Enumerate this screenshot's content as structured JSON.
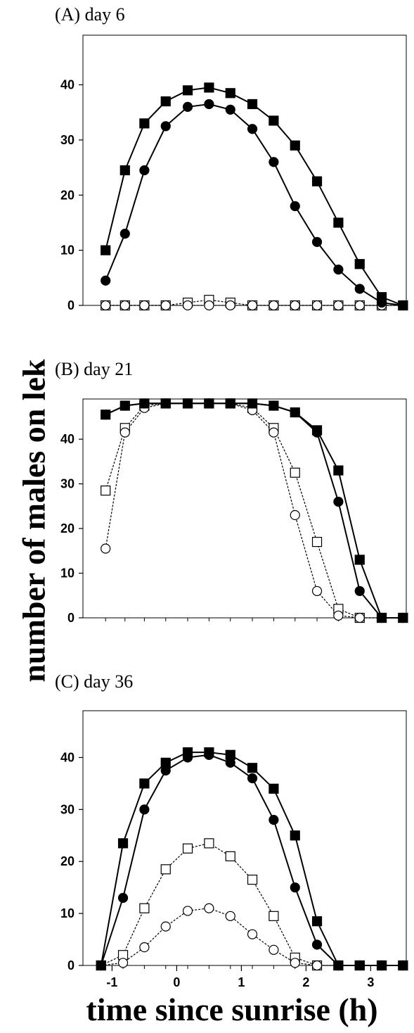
{
  "ylabel": "number of males on lek",
  "xlabel": "time since sunrise (h)",
  "chart_data": [
    {
      "type": "line",
      "title": "(A) day 6",
      "ylim": [
        0,
        49
      ],
      "yticks": [
        0,
        10,
        20,
        30,
        40
      ],
      "x": [
        -1.1,
        -0.8,
        -0.5,
        -0.17,
        0.17,
        0.5,
        0.83,
        1.17,
        1.5,
        1.83,
        2.17,
        2.5,
        2.83,
        3.17,
        3.5
      ],
      "series": [
        {
          "marker": "square-filled",
          "line": "solid",
          "values": [
            10,
            24.5,
            33,
            37,
            39,
            39.5,
            38.5,
            36.5,
            33.5,
            29,
            22.5,
            15,
            7.5,
            1.5,
            0
          ]
        },
        {
          "marker": "circle-filled",
          "line": "solid",
          "values": [
            4.5,
            13,
            24.5,
            32.5,
            36,
            36.5,
            35.5,
            32,
            26,
            18,
            11.5,
            6.5,
            3,
            0.5,
            0
          ]
        },
        {
          "marker": "square-open",
          "line": "dotted",
          "values": [
            0,
            0,
            0,
            0,
            0.5,
            1,
            0.5,
            0,
            0,
            0,
            0,
            0,
            0,
            0,
            0
          ]
        },
        {
          "marker": "circle-open",
          "line": "dotted",
          "values": [
            0,
            0,
            0,
            0,
            0,
            0,
            0,
            0,
            0,
            0,
            0,
            0,
            0,
            0,
            0
          ]
        }
      ]
    },
    {
      "type": "line",
      "title": "(B) day 21",
      "ylim": [
        0,
        49
      ],
      "yticks": [
        0,
        10,
        20,
        30,
        40
      ],
      "x": [
        -1.1,
        -0.8,
        -0.5,
        -0.17,
        0.17,
        0.5,
        0.83,
        1.17,
        1.5,
        1.83,
        2.17,
        2.5,
        2.83,
        3.17,
        3.5
      ],
      "series": [
        {
          "marker": "square-filled",
          "line": "solid",
          "values": [
            45.5,
            47.5,
            48,
            48,
            48,
            48,
            48,
            48,
            47.5,
            46,
            42,
            33,
            13,
            0,
            0
          ]
        },
        {
          "marker": "circle-filled",
          "line": "solid",
          "values": [
            45.5,
            47.5,
            48,
            48,
            48,
            48,
            48,
            48,
            47.5,
            46,
            41.5,
            26,
            6,
            0,
            0
          ]
        },
        {
          "marker": "square-open",
          "line": "dotted",
          "values": [
            28.5,
            42.5,
            47.5,
            48,
            48,
            48,
            48,
            47,
            42.5,
            32.5,
            17,
            2,
            0,
            0,
            0
          ]
        },
        {
          "marker": "circle-open",
          "line": "dotted",
          "values": [
            15.5,
            41.5,
            47,
            48,
            48,
            48,
            48,
            46.5,
            41.5,
            23,
            6,
            0.5,
            0,
            0,
            0
          ]
        }
      ]
    },
    {
      "type": "line",
      "title": "(C) day 36",
      "ylim": [
        0,
        49
      ],
      "yticks": [
        0,
        10,
        20,
        30,
        40
      ],
      "xticks": [
        -1,
        0,
        1,
        2,
        3
      ],
      "x": [
        -1.17,
        -0.83,
        -0.5,
        -0.17,
        0.17,
        0.5,
        0.83,
        1.17,
        1.5,
        1.83,
        2.17,
        2.5,
        2.83,
        3.17,
        3.5
      ],
      "series": [
        {
          "marker": "square-filled",
          "line": "solid",
          "values": [
            0,
            23.5,
            35,
            39,
            41,
            41,
            40.5,
            38,
            34,
            25,
            8.5,
            0,
            0,
            0,
            0
          ]
        },
        {
          "marker": "circle-filled",
          "line": "solid",
          "values": [
            0,
            13,
            30,
            37.5,
            40,
            40.5,
            39,
            36,
            28,
            15,
            4,
            0,
            0,
            0,
            0
          ]
        },
        {
          "marker": "square-open",
          "line": "dotted",
          "values": [
            0,
            2,
            11,
            18.5,
            22.5,
            23.5,
            21,
            16.5,
            9.5,
            1.5,
            0,
            0,
            0,
            0,
            0
          ]
        },
        {
          "marker": "circle-open",
          "line": "dotted",
          "values": [
            0,
            0.5,
            3.5,
            7.5,
            10.5,
            11,
            9.5,
            6,
            3,
            0.5,
            0,
            0,
            0,
            0,
            0
          ]
        }
      ]
    }
  ]
}
